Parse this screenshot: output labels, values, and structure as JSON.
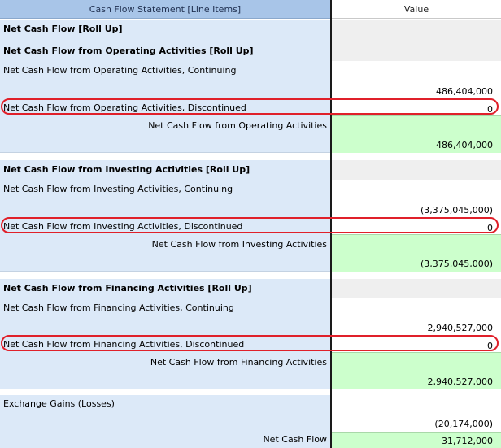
{
  "header": {
    "label_column": "Cash Flow Statement [Line Items]",
    "value_column": "Value"
  },
  "rows": [
    {
      "label": "Net Cash Flow [Roll Up]",
      "value": ""
    },
    {
      "label": "Net Cash Flow from Operating Activities [Roll Up]",
      "value": ""
    },
    {
      "label": "Net Cash Flow from Operating Activities, Continuing",
      "value": "486,404,000"
    },
    {
      "label": "Net Cash Flow from Operating Activities, Discontinued",
      "value": "0"
    },
    {
      "label": "Net Cash Flow from Operating Activities",
      "value": "486,404,000"
    },
    {
      "label": "Net Cash Flow from Investing Activities [Roll Up]",
      "value": ""
    },
    {
      "label": "Net Cash Flow from Investing Activities, Continuing",
      "value": "(3,375,045,000)"
    },
    {
      "label": "Net Cash Flow from Investing Activities, Discontinued",
      "value": "0"
    },
    {
      "label": "Net Cash Flow from Investing Activities",
      "value": "(3,375,045,000)"
    },
    {
      "label": "Net Cash Flow from Financing Activities [Roll Up]",
      "value": ""
    },
    {
      "label": "Net Cash Flow from Financing Activities, Continuing",
      "value": "2,940,527,000"
    },
    {
      "label": "Net Cash Flow from Financing Activities, Discontinued",
      "value": "0"
    },
    {
      "label": "Net Cash Flow from Financing Activities",
      "value": "2,940,527,000"
    },
    {
      "label": "Exchange Gains (Losses)",
      "value": "(20,174,000)"
    },
    {
      "label": "Net Cash Flow",
      "value": "31,712,000"
    }
  ],
  "colors": {
    "label_background": "#dce9f8",
    "header_background": "#a8c5e8",
    "total_background": "#ccffcc",
    "rollup_value_background": "#efefef",
    "highlight_ring": "#e0202a"
  }
}
